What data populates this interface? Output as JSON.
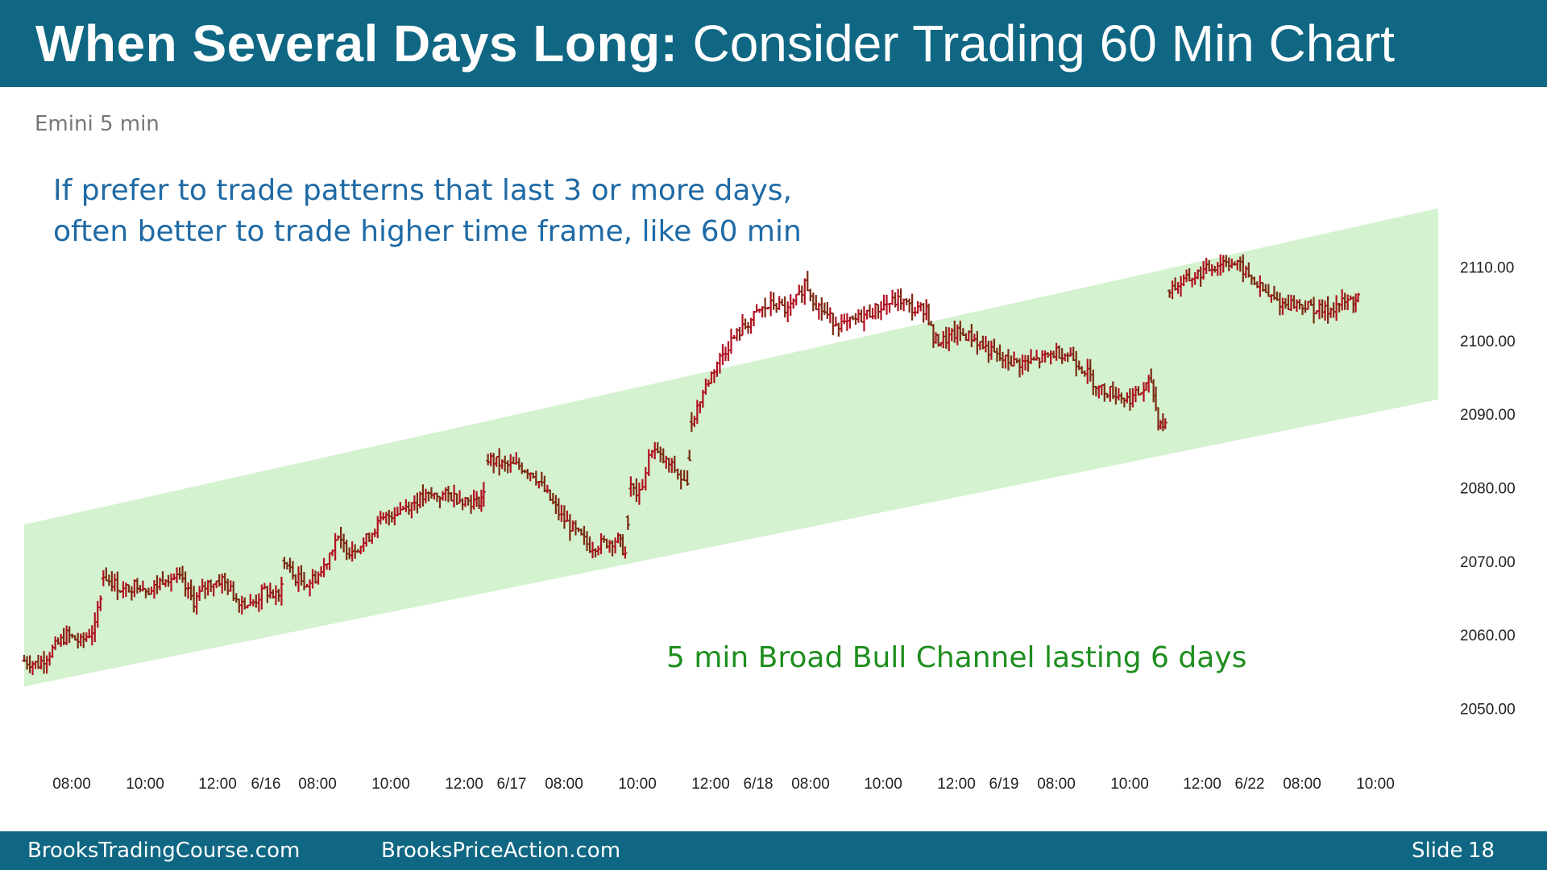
{
  "header": {
    "title_bold": "When Several Days Long:",
    "title_rest": "Consider Trading 60 Min Chart",
    "background_color": "#0f6783"
  },
  "footer": {
    "left_site": "BrooksTradingCourse.com",
    "center_site": "BrooksPriceAction.com",
    "slide_label": "Slide",
    "slide_number": "18"
  },
  "chart_data": {
    "type": "ohlc",
    "subtitle": "Emini 5 min",
    "annotation_blue": [
      "If prefer to trade patterns that last 3 or more days,",
      "often better to trade higher time frame, like 60 min"
    ],
    "annotation_green": "5 min Broad Bull Channel lasting 6 days",
    "ylim": [
      2046,
      2114
    ],
    "y_ticks": [
      2110,
      2100,
      2090,
      2080,
      2070,
      2060,
      2050
    ],
    "y_tick_labels": [
      "2110.00",
      "2100.00",
      "2090.00",
      "2080.00",
      "2070.00",
      "2060.00",
      "2050.00"
    ],
    "x_labels": [
      "08:00",
      "10:00",
      "12:00",
      "6/16",
      "08:00",
      "10:00",
      "12:00",
      "6/17",
      "08:00",
      "10:00",
      "12:00",
      "6/18",
      "08:00",
      "10:00",
      "12:00",
      "6/19",
      "08:00",
      "10:00",
      "12:00",
      "6/22",
      "08:00",
      "10:00"
    ],
    "channel": {
      "label": "5 min Broad Bull Channel lasting 6 days",
      "color": "#d4f2cf",
      "upper_line": [
        [
          0,
          2075
        ],
        [
          100,
          2118
        ]
      ],
      "lower_line": [
        [
          0,
          2053
        ],
        [
          100,
          2092
        ]
      ]
    },
    "bar_color": "#7a2a12",
    "bar_color_up": "#b01020",
    "price_path": [
      [
        0,
        2056.5
      ],
      [
        1,
        2056
      ],
      [
        2,
        2058
      ],
      [
        3,
        2060
      ],
      [
        4,
        2059
      ],
      [
        5,
        2061
      ],
      [
        5.6,
        2068
      ],
      [
        6,
        2067.5
      ],
      [
        7,
        2066
      ],
      [
        8,
        2067
      ],
      [
        9,
        2066
      ],
      [
        10,
        2068
      ],
      [
        11,
        2067.5
      ],
      [
        12,
        2064.5
      ],
      [
        13,
        2067
      ],
      [
        14,
        2067.5
      ],
      [
        15,
        2065
      ],
      [
        16,
        2064
      ],
      [
        17,
        2066
      ],
      [
        18,
        2065
      ],
      [
        18.4,
        2070
      ],
      [
        19,
        2068
      ],
      [
        20,
        2067
      ],
      [
        21,
        2068.5
      ],
      [
        22,
        2073
      ],
      [
        23,
        2071.5
      ],
      [
        24,
        2072.5
      ],
      [
        25,
        2075
      ],
      [
        26,
        2076.5
      ],
      [
        27,
        2077.5
      ],
      [
        28,
        2078.5
      ],
      [
        29,
        2079
      ],
      [
        30,
        2079
      ],
      [
        31,
        2078.5
      ],
      [
        32,
        2078
      ],
      [
        32.5,
        2079
      ],
      [
        32.8,
        2084
      ],
      [
        34,
        2083
      ],
      [
        35,
        2083
      ],
      [
        36,
        2082
      ],
      [
        37,
        2079
      ],
      [
        38,
        2076
      ],
      [
        39,
        2074
      ],
      [
        40,
        2072
      ],
      [
        41,
        2072.5
      ],
      [
        42,
        2073
      ],
      [
        42.5,
        2071
      ],
      [
        42.9,
        2080
      ],
      [
        43.5,
        2079
      ],
      [
        44.4,
        2085.5
      ],
      [
        45,
        2084
      ],
      [
        46,
        2082.5
      ],
      [
        46.9,
        2080
      ],
      [
        47.2,
        2089
      ],
      [
        48,
        2093
      ],
      [
        49,
        2097
      ],
      [
        50,
        2100
      ],
      [
        51,
        2102
      ],
      [
        52,
        2104
      ],
      [
        53,
        2105
      ],
      [
        54,
        2104
      ],
      [
        54.8,
        2106
      ],
      [
        55.2,
        2108
      ],
      [
        56,
        2105
      ],
      [
        57,
        2103
      ],
      [
        58,
        2102
      ],
      [
        59,
        2103
      ],
      [
        60,
        2104
      ],
      [
        61,
        2105
      ],
      [
        62,
        2105.5
      ],
      [
        63,
        2104
      ],
      [
        63.8,
        2104.5
      ],
      [
        64.3,
        2100
      ],
      [
        65,
        2100
      ],
      [
        66,
        2101
      ],
      [
        67,
        2100.5
      ],
      [
        68,
        2099
      ],
      [
        69,
        2097.5
      ],
      [
        70,
        2097
      ],
      [
        71,
        2097
      ],
      [
        72,
        2097.5
      ],
      [
        73,
        2098.5
      ],
      [
        74,
        2098
      ],
      [
        75,
        2096
      ],
      [
        76,
        2093.5
      ],
      [
        77,
        2093
      ],
      [
        78,
        2092
      ],
      [
        79,
        2093
      ],
      [
        79.7,
        2094.5
      ],
      [
        80.2,
        2089
      ],
      [
        80.7,
        2088.5
      ],
      [
        81,
        2107
      ],
      [
        82,
        2108
      ],
      [
        83,
        2109
      ],
      [
        84,
        2110
      ],
      [
        85,
        2111
      ],
      [
        86,
        2110
      ],
      [
        87,
        2108
      ],
      [
        88,
        2106
      ],
      [
        89,
        2105
      ],
      [
        90,
        2105
      ],
      [
        91,
        2104.5
      ],
      [
        92,
        2104
      ],
      [
        93,
        2105
      ],
      [
        94,
        2105.5
      ],
      [
        94.5,
        2106
      ]
    ],
    "grid": false,
    "legend": "none"
  }
}
